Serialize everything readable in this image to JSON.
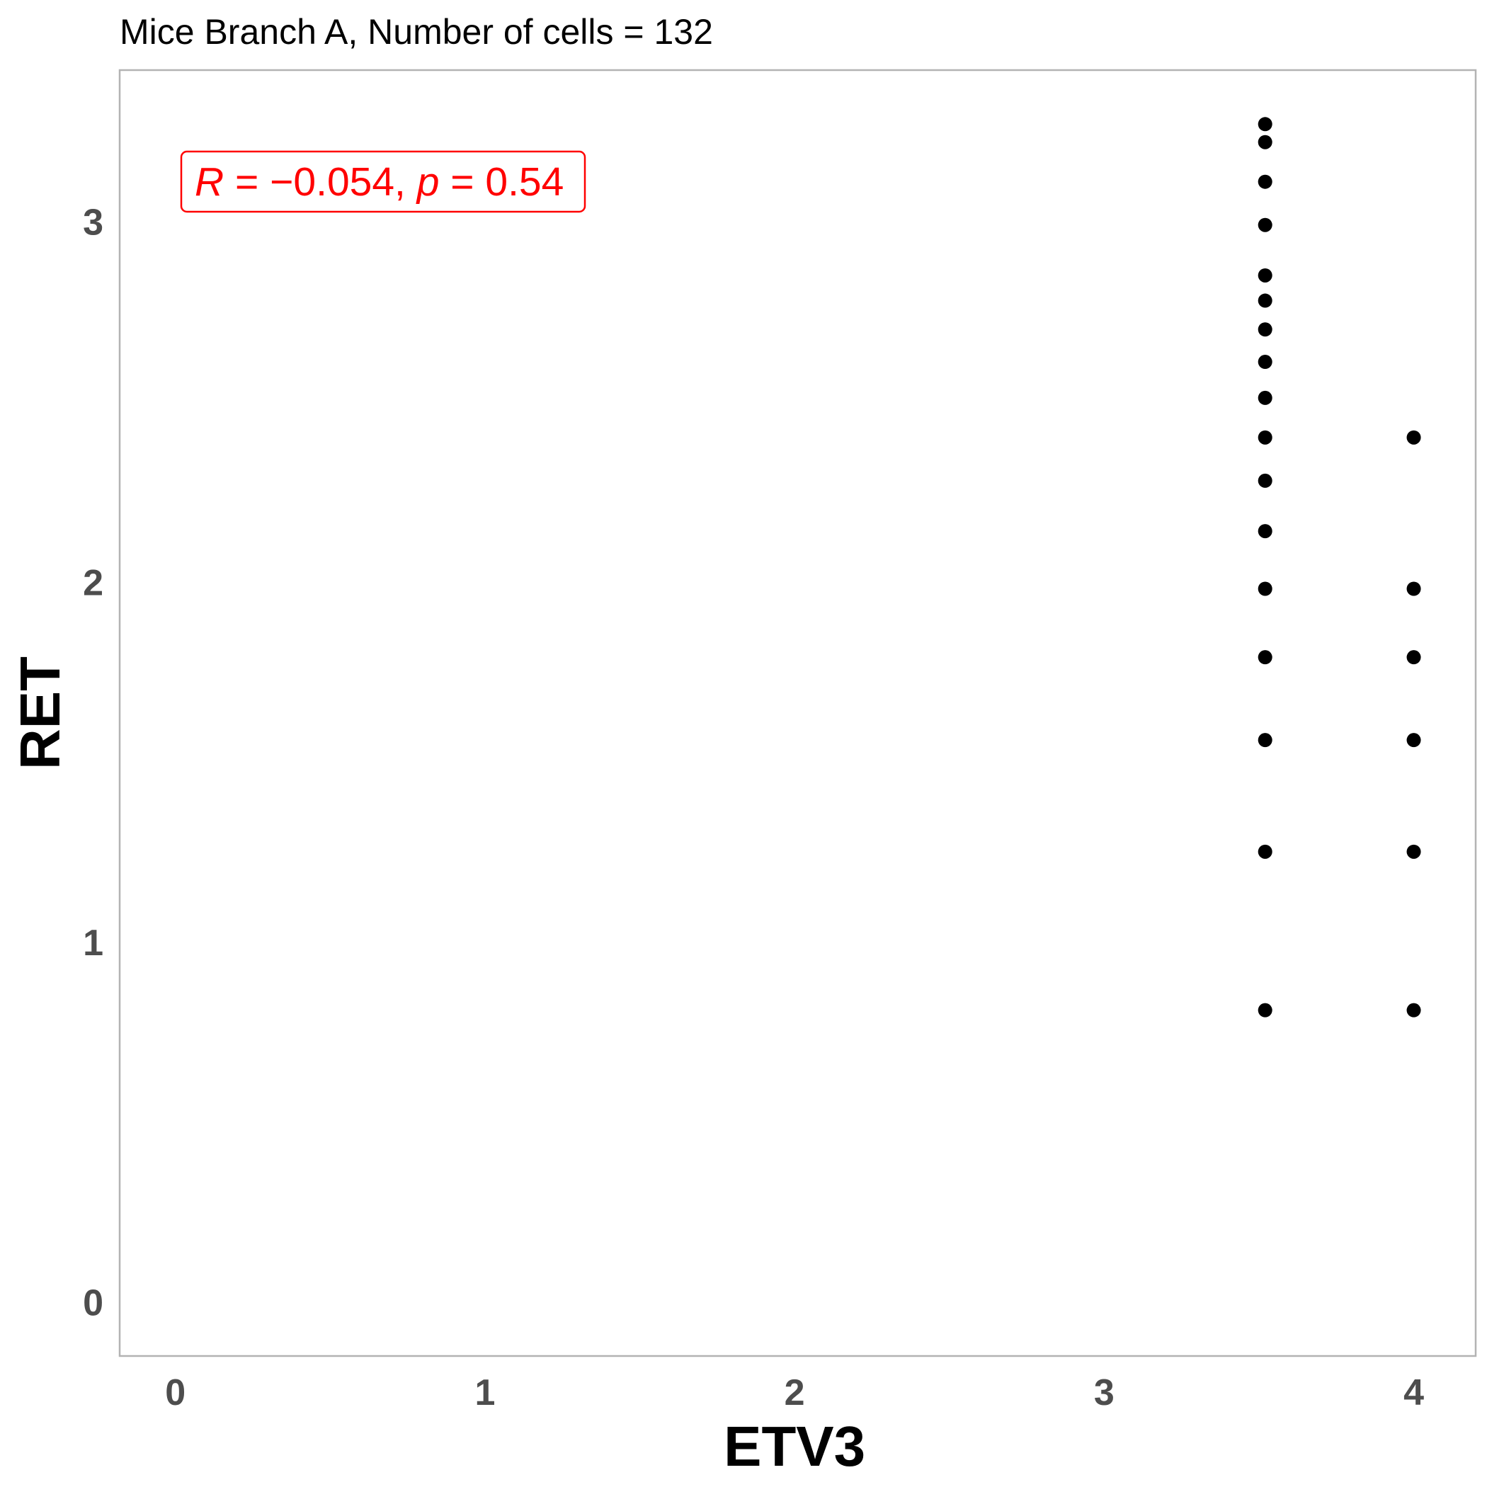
{
  "chart_data": {
    "type": "scatter",
    "title": "Mice Branch A, Number of cells = 132",
    "xlabel": "ETV3",
    "ylabel": "RET",
    "xlim": [
      -0.18,
      4.2
    ],
    "ylim": [
      -0.15,
      3.42
    ],
    "x_ticks": [
      "0",
      "1",
      "2",
      "3",
      "4"
    ],
    "y_ticks": [
      "0",
      "1",
      "2",
      "3"
    ],
    "grid": false,
    "annotation": {
      "r_symbol": "R",
      "r_value": " = −0.054, ",
      "p_symbol": "p",
      "p_value": " = 0.54",
      "color": "#ff0000"
    },
    "point_color": "#000000",
    "points": [
      [
        3.52,
        3.27
      ],
      [
        3.52,
        3.22
      ],
      [
        3.52,
        3.11
      ],
      [
        3.52,
        2.99
      ],
      [
        3.52,
        2.85
      ],
      [
        3.52,
        2.78
      ],
      [
        3.52,
        2.7
      ],
      [
        3.52,
        2.61
      ],
      [
        3.52,
        2.51
      ],
      [
        3.52,
        2.4
      ],
      [
        3.52,
        2.28
      ],
      [
        3.52,
        2.14
      ],
      [
        3.52,
        1.98
      ],
      [
        3.52,
        1.79
      ],
      [
        3.52,
        1.56
      ],
      [
        3.52,
        1.25
      ],
      [
        3.52,
        0.81
      ],
      [
        4.0,
        2.4
      ],
      [
        4.0,
        1.98
      ],
      [
        4.0,
        1.79
      ],
      [
        4.0,
        1.56
      ],
      [
        4.0,
        1.25
      ],
      [
        4.0,
        0.81
      ]
    ]
  }
}
